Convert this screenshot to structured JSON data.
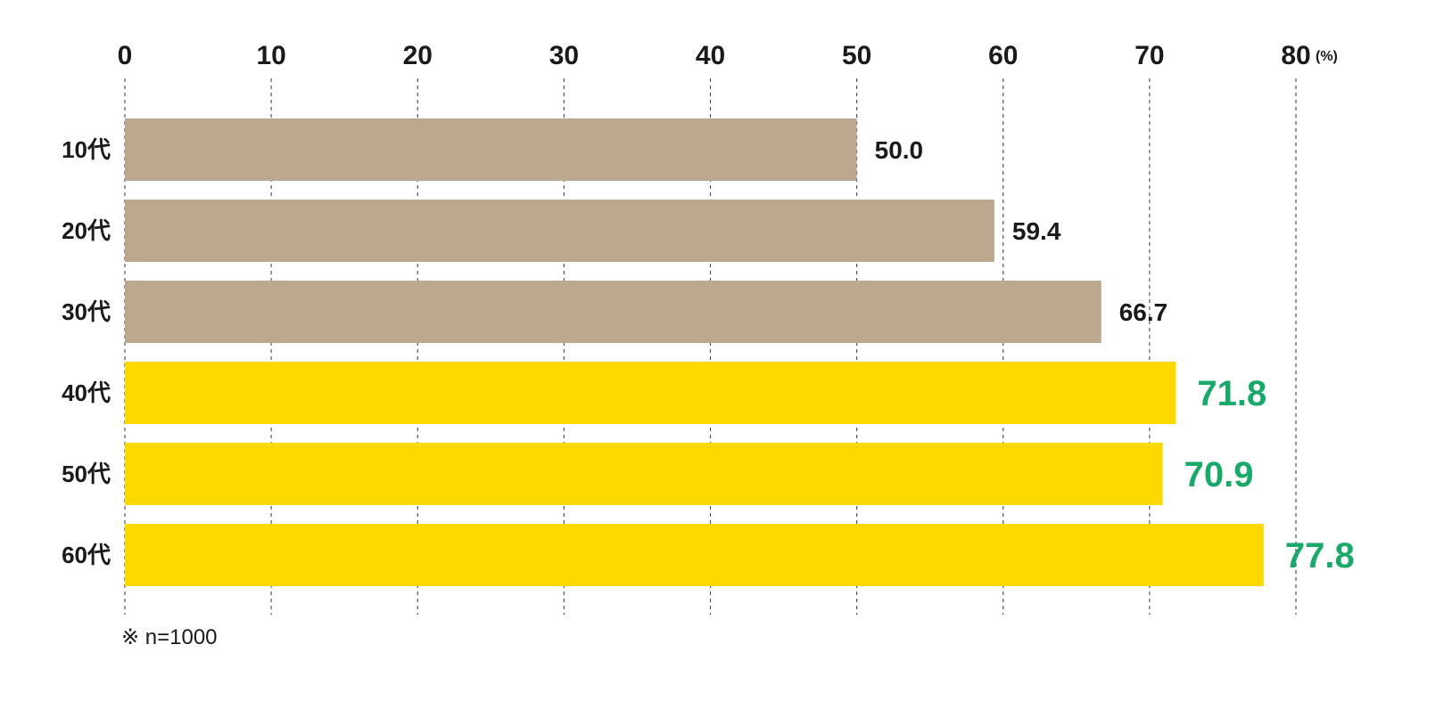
{
  "chart_data": {
    "type": "bar",
    "orientation": "horizontal",
    "categories": [
      "10代",
      "20代",
      "30代",
      "40代",
      "50代",
      "60代"
    ],
    "values": [
      50.0,
      59.4,
      66.7,
      71.8,
      70.9,
      77.8
    ],
    "value_labels": [
      "50.0",
      "59.4",
      "66.7",
      "71.8",
      "70.9",
      "77.8"
    ],
    "highlighted": [
      false,
      false,
      false,
      true,
      true,
      true
    ],
    "xlim": [
      0,
      80
    ],
    "x_ticks": [
      "0",
      "10",
      "20",
      "30",
      "40",
      "50",
      "60",
      "70",
      "80"
    ],
    "x_unit": "(%)",
    "grid": true,
    "title": "",
    "xlabel": "",
    "ylabel": "",
    "colors": {
      "bar_default": "#bca88e",
      "bar_highlight": "#fdd900",
      "value_default": "#1a1a1a",
      "value_highlight": "#1aa96a"
    }
  },
  "note": "※ n=1000"
}
